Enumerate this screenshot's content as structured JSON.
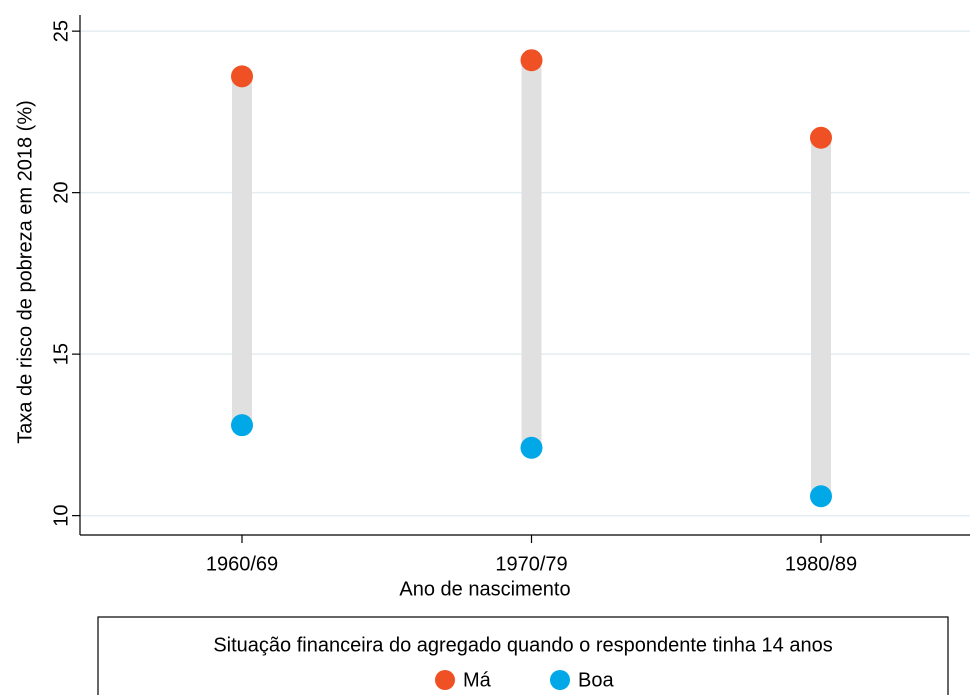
{
  "chart_data": {
    "type": "dumbbell",
    "xlabel": "Ano de nascimento",
    "ylabel": "Taxa de risco de pobreza em 2018 (%)",
    "categories": [
      "1960/69",
      "1970/79",
      "1980/89"
    ],
    "series": [
      {
        "name": "Má",
        "color": "#ef5124",
        "values": [
          23.6,
          24.1,
          21.7
        ]
      },
      {
        "name": "Boa",
        "color": "#00a8e8",
        "values": [
          12.8,
          12.1,
          10.6
        ]
      }
    ],
    "connector_color": "#e0e0e0",
    "ylim": [
      9.4,
      25.5
    ],
    "yticks": [
      10,
      15,
      20,
      25
    ],
    "grid": true,
    "legend_title": "Situação financeira do agregado quando o respondente tinha 14 anos",
    "legend_position": "bottom"
  }
}
